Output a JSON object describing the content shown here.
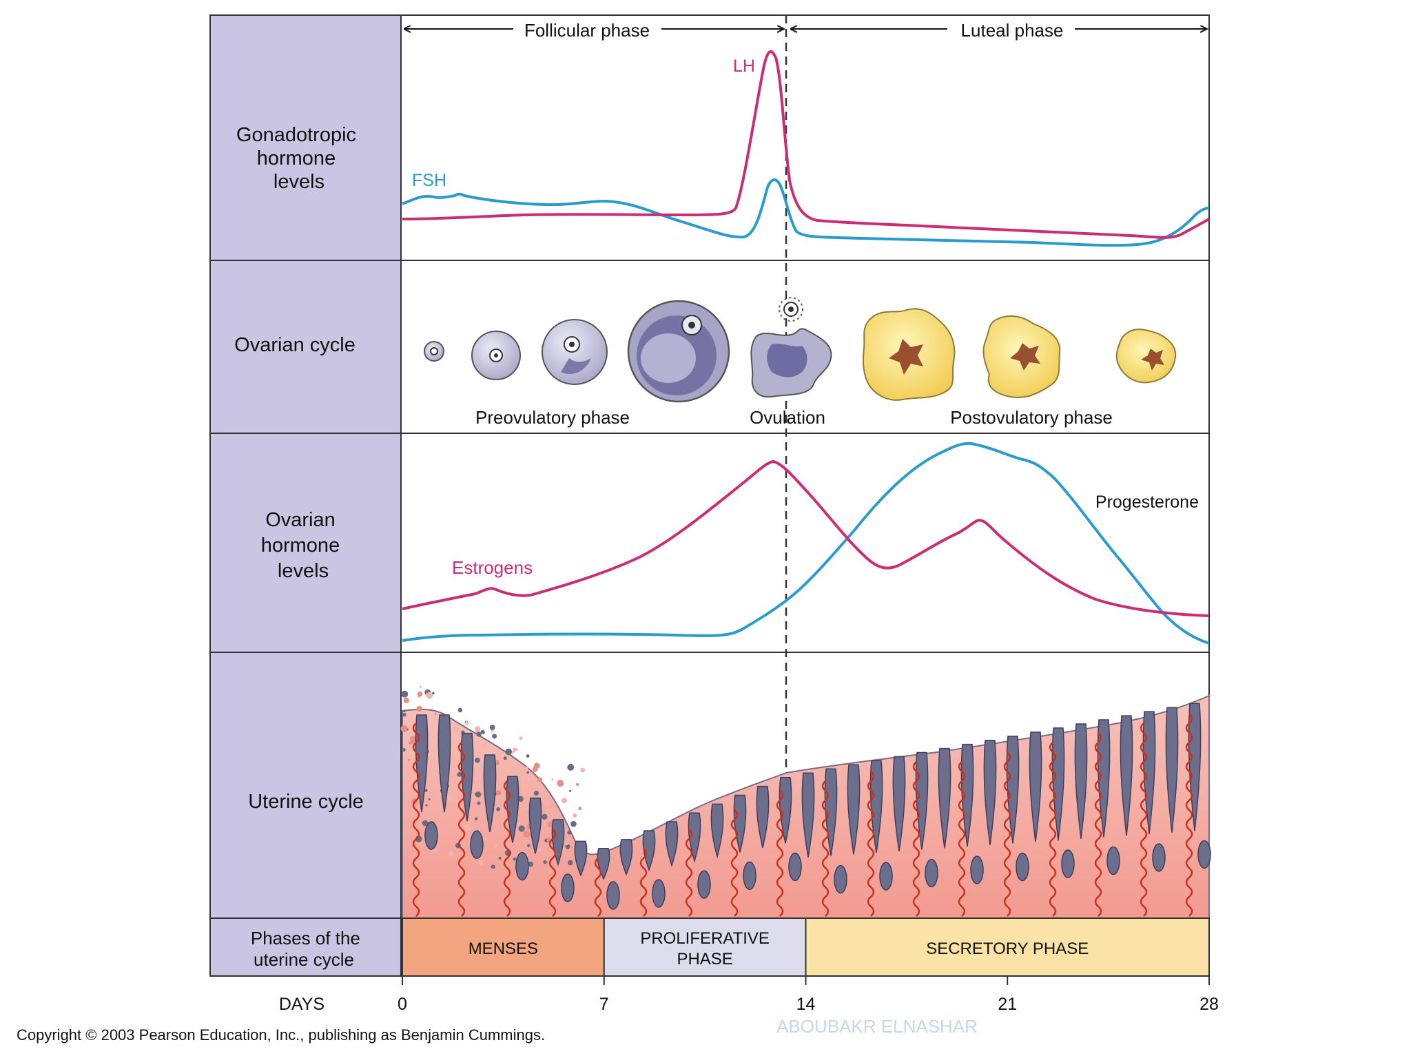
{
  "panel_labels": {
    "gonadotropic": [
      "Gonadotropic",
      "hormone",
      "levels"
    ],
    "ovarian_cycle": "Ovarian cycle",
    "ovarian_hormones": [
      "Ovarian",
      "hormone",
      "levels"
    ],
    "uterine_cycle": "Uterine cycle",
    "phases_label": [
      "Phases of the",
      "uterine cycle"
    ]
  },
  "phase_header": {
    "follicular": "Follicular phase",
    "luteal": "Luteal phase"
  },
  "ovarian_stage_labels": {
    "preovulatory": "Preovulatory phase",
    "ovulation": "Ovulation",
    "postovulatory": "Postovulatory phase"
  },
  "uterine_phases": [
    {
      "label": [
        "MENSES"
      ],
      "start_day": 0,
      "end_day": 7,
      "color": "#f3a57f"
    },
    {
      "label": [
        "PROLIFERATIVE",
        "PHASE"
      ],
      "start_day": 7,
      "end_day": 14,
      "color": "#dcdcec"
    },
    {
      "label": [
        "SECRETORY PHASE"
      ],
      "start_day": 14,
      "end_day": 28,
      "color": "#fbe2a6"
    }
  ],
  "days_axis": {
    "label": "DAYS",
    "ticks": [
      "0",
      "7",
      "14",
      "21",
      "28"
    ]
  },
  "copyright": "Copyright © 2003 Pearson Education, Inc., publishing as Benjamin Cummings.",
  "watermark": "ABOUBAKR ELNASHAR",
  "curves": {
    "lh": {
      "label": "LH",
      "color": "#cc2c74"
    },
    "fsh": {
      "label": "FSH",
      "color": "#2a9bcf"
    },
    "estrogens": {
      "label": "Estrogens",
      "color": "#cc2c74"
    },
    "progesterone": {
      "label": "Progesterone",
      "color": "#2a9bcf"
    }
  },
  "colors": {
    "label_panel": "#c9c5e3",
    "follicle": "#bdbad6",
    "corpus_luteum": "#f7e06a",
    "endometrium": "#f2a7a2",
    "gland": "#6c6e8e",
    "artery": "#c8321e"
  }
}
